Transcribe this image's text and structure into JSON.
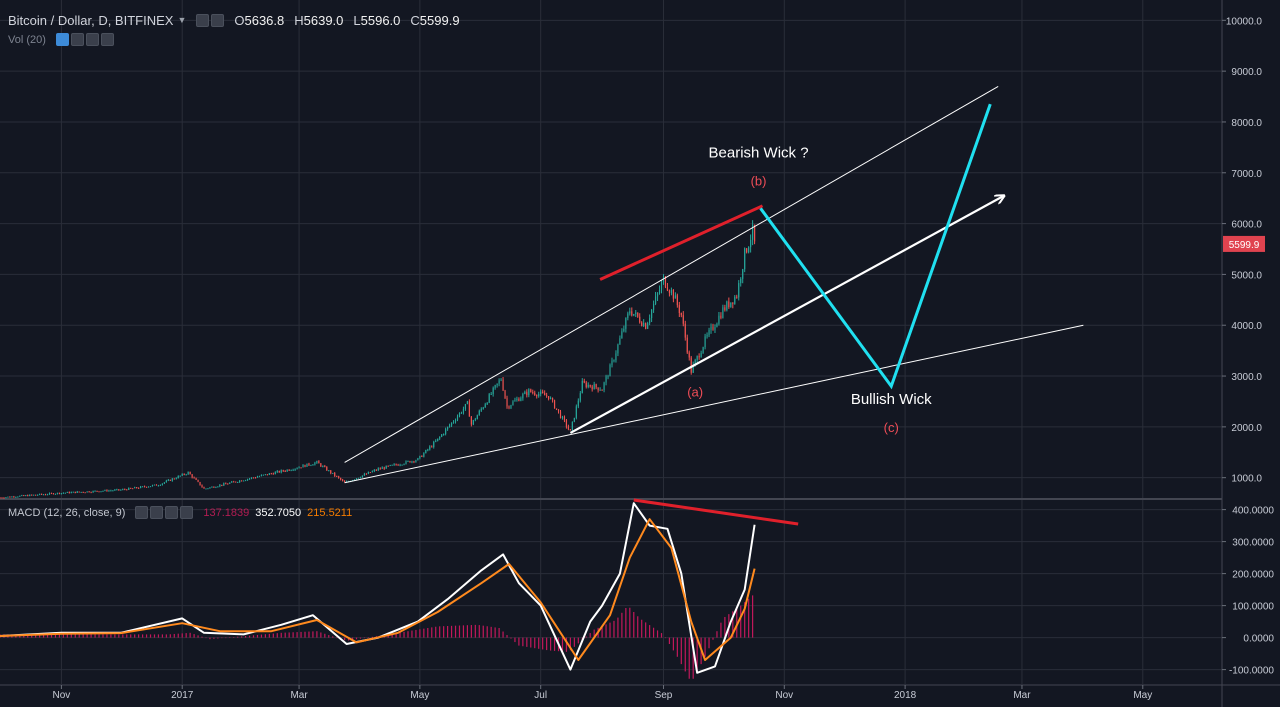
{
  "header": {
    "symbol": "Bitcoin / Dollar, D, BITFINEX",
    "ohlc": [
      {
        "key": "O",
        "value": "5636.8"
      },
      {
        "key": "H",
        "value": "5639.0"
      },
      {
        "key": "L",
        "value": "5596.0"
      },
      {
        "key": "C",
        "value": "5599.9"
      }
    ],
    "volume_label": "Vol (20)"
  },
  "macd_header": {
    "label": "MACD (12, 26, close, 9)",
    "histogram": "137.1839",
    "macd": "352.7050",
    "signal": "215.5211"
  },
  "colors": {
    "background": "#131722",
    "grid": "#2a2e39",
    "candle_up": "#26a69a",
    "candle_down": "#ef5350",
    "price_badge": "#e0434f",
    "trendline": "#ffffff",
    "red_line": "#e0202b",
    "cyan_path": "#20e0f0",
    "macd_line": "#ffffff",
    "signal_line": "#ff8a1e",
    "histogram": "#c2185b",
    "wave_label": "#ef4d57"
  },
  "chart_data": [
    {
      "type": "candlestick",
      "title": "Bitcoin / Dollar, D, BITFINEX",
      "y_axis": {
        "ticks": [
          1000,
          2000,
          3000,
          4000,
          5000,
          6000,
          7000,
          8000,
          9000,
          10000
        ],
        "tick_labels": [
          "1000.0",
          "2000.0",
          "3000.0",
          "4000.0",
          "5000.0",
          "6000.0",
          "7000.0",
          "8000.0",
          "9000.0",
          "10000.0"
        ],
        "range": [
          600,
          10400
        ],
        "position": "right"
      },
      "x_axis": {
        "tick_labels": [
          "Nov",
          "2017",
          "Mar",
          "May",
          "Jul",
          "Sep",
          "Nov",
          "2018",
          "Mar",
          "May"
        ],
        "tick_dates": [
          "2016-11-01",
          "2017-01-01",
          "2017-03-01",
          "2017-05-01",
          "2017-07-01",
          "2017-09-01",
          "2017-11-01",
          "2018-01-01",
          "2018-03-01",
          "2018-05-01"
        ],
        "range": [
          "2016-10-01",
          "2018-06-10"
        ]
      },
      "last_price_label": "5599.9",
      "last_price": 5599.9,
      "price_path": [
        [
          "2016-10-01",
          610
        ],
        [
          "2016-11-01",
          700
        ],
        [
          "2016-12-01",
          760
        ],
        [
          "2016-12-20",
          860
        ],
        [
          "2017-01-04",
          1100
        ],
        [
          "2017-01-12",
          780
        ],
        [
          "2017-02-01",
          960
        ],
        [
          "2017-02-25",
          1170
        ],
        [
          "2017-03-10",
          1300
        ],
        [
          "2017-03-24",
          900
        ],
        [
          "2017-04-10",
          1170
        ],
        [
          "2017-04-30",
          1360
        ],
        [
          "2017-05-10",
          1750
        ],
        [
          "2017-05-25",
          2450
        ],
        [
          "2017-05-27",
          2050
        ],
        [
          "2017-06-11",
          2950
        ],
        [
          "2017-06-14",
          2400
        ],
        [
          "2017-06-25",
          2700
        ],
        [
          "2017-07-05",
          2600
        ],
        [
          "2017-07-16",
          1900
        ],
        [
          "2017-07-22",
          2850
        ],
        [
          "2017-08-01",
          2750
        ],
        [
          "2017-08-06",
          3250
        ],
        [
          "2017-08-15",
          4300
        ],
        [
          "2017-08-23",
          4000
        ],
        [
          "2017-09-01",
          4900
        ],
        [
          "2017-09-06",
          4600
        ],
        [
          "2017-09-10",
          4200
        ],
        [
          "2017-09-15",
          3100
        ],
        [
          "2017-09-22",
          3700
        ],
        [
          "2017-10-01",
          4300
        ],
        [
          "2017-10-08",
          4600
        ],
        [
          "2017-10-12",
          5400
        ],
        [
          "2017-10-16",
          5850
        ],
        [
          "2017-10-17",
          5600
        ]
      ],
      "annotations": {
        "texts": [
          {
            "text": "Bearish Wick ?",
            "date": "2017-10-19",
            "price": 7300
          },
          {
            "text": "(b)",
            "date": "2017-10-19",
            "price": 6750
          },
          {
            "text": "(a)",
            "date": "2017-09-17",
            "price": 2600
          },
          {
            "text": "Bullish Wick",
            "date": "2017-12-25",
            "price": 2450
          },
          {
            "text": "(c)",
            "date": "2017-12-25",
            "price": 1900
          }
        ],
        "trendlines": [
          {
            "name": "upper-channel",
            "from": [
              "2017-03-24",
              1300
            ],
            "to": [
              "2018-02-17",
              8700
            ]
          },
          {
            "name": "middle-arrow",
            "from": [
              "2017-07-16",
              1880
            ],
            "to": [
              "2018-02-20",
              6550
            ],
            "arrow": true
          },
          {
            "name": "lower-channel",
            "from": [
              "2017-03-24",
              900
            ],
            "to": [
              "2018-04-01",
              4000
            ]
          },
          {
            "name": "red-resistance",
            "from": [
              "2017-07-31",
              4900
            ],
            "to": [
              "2017-10-21",
              6350
            ]
          }
        ],
        "projection_path": [
          [
            "2017-10-20",
            6300
          ],
          [
            "2017-12-25",
            2800
          ],
          [
            "2018-02-13",
            8350
          ]
        ]
      }
    },
    {
      "type": "line",
      "title": "MACD (12, 26, close, 9)",
      "y_axis": {
        "ticks": [
          -100,
          0,
          100,
          200,
          300,
          400
        ],
        "tick_labels": [
          "-100.0000",
          "0.0000",
          "100.0000",
          "200.0000",
          "300.0000",
          "400.0000"
        ],
        "range": [
          -145,
          430
        ]
      },
      "series": [
        {
          "name": "MACD",
          "points": [
            [
              "2016-10-01",
              5
            ],
            [
              "2016-11-01",
              15
            ],
            [
              "2016-12-01",
              15
            ],
            [
              "2017-01-01",
              60
            ],
            [
              "2017-01-12",
              15
            ],
            [
              "2017-02-01",
              10
            ],
            [
              "2017-02-20",
              40
            ],
            [
              "2017-03-08",
              70
            ],
            [
              "2017-03-25",
              -20
            ],
            [
              "2017-04-10",
              0
            ],
            [
              "2017-04-30",
              50
            ],
            [
              "2017-05-15",
              120
            ],
            [
              "2017-06-01",
              210
            ],
            [
              "2017-06-12",
              260
            ],
            [
              "2017-06-20",
              170
            ],
            [
              "2017-07-01",
              100
            ],
            [
              "2017-07-16",
              -100
            ],
            [
              "2017-07-26",
              50
            ],
            [
              "2017-08-01",
              100
            ],
            [
              "2017-08-10",
              200
            ],
            [
              "2017-08-17",
              420
            ],
            [
              "2017-08-25",
              350
            ],
            [
              "2017-09-03",
              340
            ],
            [
              "2017-09-10",
              200
            ],
            [
              "2017-09-18",
              -110
            ],
            [
              "2017-09-27",
              -90
            ],
            [
              "2017-10-05",
              50
            ],
            [
              "2017-10-12",
              150
            ],
            [
              "2017-10-17",
              352.7
            ]
          ]
        },
        {
          "name": "Signal",
          "points": [
            [
              "2016-10-01",
              5
            ],
            [
              "2016-11-01",
              12
            ],
            [
              "2016-12-01",
              14
            ],
            [
              "2017-01-01",
              45
            ],
            [
              "2017-01-20",
              20
            ],
            [
              "2017-02-15",
              20
            ],
            [
              "2017-03-10",
              55
            ],
            [
              "2017-03-30",
              -15
            ],
            [
              "2017-04-20",
              15
            ],
            [
              "2017-05-10",
              80
            ],
            [
              "2017-06-01",
              170
            ],
            [
              "2017-06-15",
              230
            ],
            [
              "2017-07-01",
              110
            ],
            [
              "2017-07-20",
              -70
            ],
            [
              "2017-08-05",
              70
            ],
            [
              "2017-08-15",
              250
            ],
            [
              "2017-08-25",
              370
            ],
            [
              "2017-09-05",
              280
            ],
            [
              "2017-09-15",
              50
            ],
            [
              "2017-09-22",
              -70
            ],
            [
              "2017-10-05",
              0
            ],
            [
              "2017-10-12",
              90
            ],
            [
              "2017-10-17",
              215.5
            ]
          ]
        }
      ],
      "histogram": [
        [
          "2016-12-25",
          10
        ],
        [
          "2017-01-05",
          15
        ],
        [
          "2017-01-15",
          -5
        ],
        [
          "2017-02-20",
          15
        ],
        [
          "2017-03-10",
          20
        ],
        [
          "2017-03-25",
          -10
        ],
        [
          "2017-04-20",
          15
        ],
        [
          "2017-05-10",
          35
        ],
        [
          "2017-05-30",
          40
        ],
        [
          "2017-06-10",
          30
        ],
        [
          "2017-06-20",
          -25
        ],
        [
          "2017-07-05",
          -40
        ],
        [
          "2017-07-15",
          -45
        ],
        [
          "2017-07-28",
          25
        ],
        [
          "2017-08-08",
          55
        ],
        [
          "2017-08-14",
          100
        ],
        [
          "2017-08-20",
          60
        ],
        [
          "2017-09-01",
          10
        ],
        [
          "2017-09-08",
          -60
        ],
        [
          "2017-09-15",
          -140
        ],
        [
          "2017-09-22",
          -60
        ],
        [
          "2017-10-01",
          60
        ],
        [
          "2017-10-10",
          100
        ],
        [
          "2017-10-17",
          137.2
        ]
      ],
      "annotations": {
        "trendlines": [
          {
            "name": "red-divergence",
            "from": [
              "2017-08-17",
              430
            ],
            "to": [
              "2017-11-08",
              355
            ]
          }
        ]
      }
    }
  ]
}
